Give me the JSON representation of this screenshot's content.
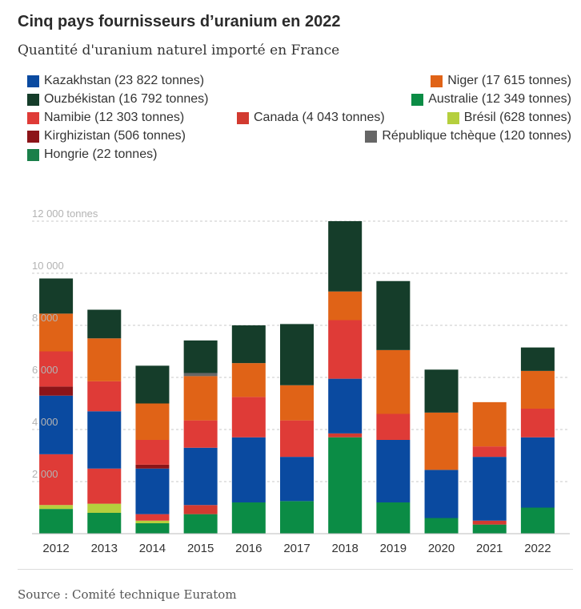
{
  "header": {
    "title": "Cinq pays fournisseurs d’uranium en 2022",
    "subtitle": "Quantité d'uranium naturel importé en France"
  },
  "legend": [
    {
      "key": "kazakhstan",
      "label": "Kazakhstan (23 822 tonnes)",
      "color": "#0a4aa0"
    },
    {
      "key": "niger",
      "label": "Niger (17 615 tonnes)",
      "color": "#e06317"
    },
    {
      "key": "ouzbekistan",
      "label": "Ouzbékistan (16 792 tonnes)",
      "color": "#153d2a"
    },
    {
      "key": "australie",
      "label": "Australie (12 349 tonnes)",
      "color": "#0b8c45"
    },
    {
      "key": "namibie",
      "label": "Namibie (12 303 tonnes)",
      "color": "#df3b37"
    },
    {
      "key": "canada",
      "label": "Canada (4 043 tonnes)",
      "color": "#d23a30"
    },
    {
      "key": "bresil",
      "label": "Brésil (628 tonnes)",
      "color": "#b5cf3d"
    },
    {
      "key": "kirghizistan",
      "label": "Kirghizistan (506 tonnes)",
      "color": "#8c1418"
    },
    {
      "key": "tcheque",
      "label": "République tchèque (120 tonnes)",
      "color": "#666666"
    },
    {
      "key": "hongrie",
      "label": "Hongrie (22 tonnes)",
      "color": "#1a7f4a"
    }
  ],
  "chart_data": {
    "type": "bar",
    "stacked": true,
    "categories": [
      "2012",
      "2013",
      "2014",
      "2015",
      "2016",
      "2017",
      "2018",
      "2019",
      "2020",
      "2021",
      "2022"
    ],
    "ylim": [
      0,
      12000
    ],
    "y_ticks": [
      {
        "value": 2000,
        "label": "2 000"
      },
      {
        "value": 4000,
        "label": "4 000"
      },
      {
        "value": 6000,
        "label": "6 000"
      },
      {
        "value": 8000,
        "label": "8 000"
      },
      {
        "value": 10000,
        "label": "10 000"
      },
      {
        "value": 12000,
        "label": "12 000 tonnes"
      }
    ],
    "grid": "horizontal dashed",
    "series": [
      {
        "key": "australie",
        "values": [
          950,
          800,
          400,
          750,
          1200,
          1250,
          3700,
          1200,
          600,
          350,
          1000
        ]
      },
      {
        "key": "hongrie",
        "values": [
          0,
          0,
          0,
          0,
          0,
          0,
          0,
          0,
          0,
          0,
          0
        ]
      },
      {
        "key": "bresil",
        "values": [
          150,
          350,
          100,
          0,
          0,
          0,
          0,
          0,
          0,
          0,
          0
        ]
      },
      {
        "key": "canada",
        "values": [
          0,
          0,
          0,
          350,
          0,
          0,
          150,
          0,
          0,
          150,
          0
        ]
      },
      {
        "key": "namibie",
        "values": [
          1950,
          1350,
          250,
          0,
          0,
          0,
          0,
          0,
          0,
          0,
          0
        ]
      },
      {
        "key": "kazakhstan",
        "values": [
          2250,
          2200,
          1750,
          2200,
          2500,
          1700,
          2100,
          2400,
          1850,
          2450,
          2700
        ]
      },
      {
        "key": "kirghizistan",
        "values": [
          350,
          0,
          150,
          0,
          0,
          0,
          0,
          0,
          0,
          0,
          0
        ]
      },
      {
        "key": "namibie",
        "values": [
          1350,
          1150,
          950,
          1050,
          1550,
          1400,
          2250,
          1000,
          0,
          400,
          1100
        ]
      },
      {
        "key": "niger",
        "values": [
          1450,
          1650,
          1400,
          1700,
          1300,
          1350,
          1100,
          2450,
          2200,
          1700,
          1450
        ]
      },
      {
        "key": "tcheque",
        "values": [
          0,
          0,
          0,
          120,
          0,
          0,
          0,
          0,
          0,
          0,
          0
        ]
      },
      {
        "key": "ouzbekistan",
        "values": [
          1350,
          1100,
          1450,
          1250,
          1450,
          2350,
          2700,
          2650,
          1650,
          0,
          900
        ]
      }
    ]
  },
  "footer": {
    "source": "Source : Comité technique Euratom"
  }
}
